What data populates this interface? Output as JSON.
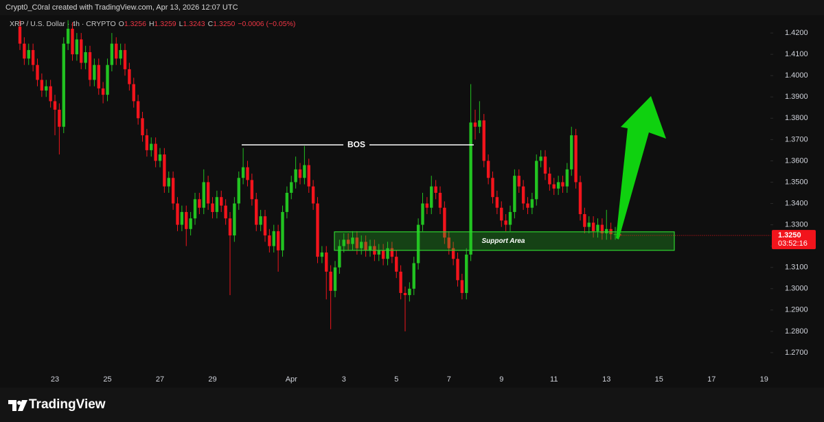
{
  "header": {
    "attribution": "Crypt0_C0ral created with TradingView.com, Apr 13, 2026 12:07 UTC"
  },
  "footer": {
    "brand": "TradingView"
  },
  "chart_data": {
    "type": "candlestick",
    "symbol": "XRP / U.S. Dollar · 4h · CRYPTO",
    "legend_labels": [
      "O",
      "H",
      "L",
      "C"
    ],
    "legend_values": [
      "1.3256",
      "1.3259",
      "1.3243",
      "1.3250"
    ],
    "change": "−0.0006 (−0.05%)",
    "up_color": "#22c321",
    "down_color": "#f2141c",
    "categories": [
      null,
      null,
      null,
      null,
      null,
      null,
      null,
      null,
      "23",
      null,
      null,
      null,
      null,
      null,
      null,
      null,
      null,
      null,
      null,
      null,
      "25",
      null,
      null,
      null,
      null,
      null,
      null,
      null,
      null,
      null,
      null,
      null,
      "27",
      null,
      null,
      null,
      null,
      null,
      null,
      null,
      null,
      null,
      null,
      null,
      "29",
      null,
      null,
      null,
      null,
      null,
      null,
      null,
      null,
      null,
      null,
      null,
      null,
      null,
      null,
      null,
      null,
      null,
      "Apr",
      null,
      null,
      null,
      null,
      null,
      null,
      null,
      null,
      null,
      null,
      null,
      "3",
      null,
      null,
      null,
      null,
      null,
      null,
      null,
      null,
      null,
      null,
      null,
      "5",
      null,
      null,
      null,
      null,
      null,
      null,
      null,
      null,
      null,
      null,
      null,
      "7",
      null,
      null,
      null,
      null,
      null,
      null,
      null,
      null,
      null,
      null,
      null,
      "9",
      null,
      null,
      null,
      null,
      null,
      null,
      null,
      null,
      null,
      null,
      null,
      "11",
      null,
      null,
      null,
      null,
      null,
      null,
      null,
      null,
      null,
      null,
      null,
      "13",
      null,
      null,
      null,
      null,
      null,
      null,
      null,
      null,
      null,
      null,
      null,
      "15",
      null,
      null,
      null,
      null,
      null,
      null,
      null,
      null,
      null,
      null,
      null,
      "17",
      null,
      null,
      null,
      null,
      null,
      null,
      null,
      null,
      null,
      null,
      null,
      "19",
      null
    ],
    "open": [
      1.423,
      1.415,
      1.408,
      1.412,
      1.405,
      1.398,
      1.393,
      1.395,
      1.388,
      1.384,
      1.376,
      1.415,
      1.422,
      1.41,
      1.417,
      1.406,
      1.411,
      1.398,
      1.405,
      1.394,
      1.391,
      1.405,
      1.415,
      1.408,
      1.412,
      1.403,
      1.396,
      1.388,
      1.38,
      1.372,
      1.365,
      1.368,
      1.36,
      1.363,
      1.348,
      1.352,
      1.34,
      1.33,
      1.336,
      1.328,
      1.333,
      1.342,
      1.338,
      1.35,
      1.34,
      1.336,
      1.343,
      1.339,
      1.333,
      1.325,
      1.34,
      1.352,
      1.357,
      1.351,
      1.342,
      1.33,
      1.334,
      1.325,
      1.32,
      1.327,
      1.318,
      1.336,
      1.345,
      1.35,
      1.356,
      1.352,
      1.358,
      1.348,
      1.34,
      1.315,
      1.317,
      1.308,
      1.299,
      1.31,
      1.32,
      1.323,
      1.321,
      1.324,
      1.319,
      1.322,
      1.318,
      1.32,
      1.316,
      1.318,
      1.314,
      1.319,
      1.315,
      1.308,
      1.298,
      1.297,
      1.3,
      1.312,
      1.33,
      1.34,
      1.338,
      1.348,
      1.345,
      1.338,
      1.324,
      1.319,
      1.314,
      1.304,
      1.298,
      1.316,
      1.378,
      1.376,
      1.379,
      1.36,
      1.352,
      1.343,
      1.338,
      1.332,
      1.33,
      1.336,
      1.353,
      1.348,
      1.34,
      1.338,
      1.342,
      1.36,
      1.362,
      1.354,
      1.349,
      1.347,
      1.35,
      1.348,
      1.356,
      1.372,
      1.35,
      1.335,
      1.329,
      1.331,
      1.327,
      1.33,
      1.326,
      1.328,
      1.3256,
      1.3256,
      null,
      null,
      null,
      null,
      null,
      null,
      null,
      null,
      null,
      null,
      null,
      null,
      null,
      null,
      null,
      null,
      null,
      null,
      null,
      null,
      null,
      null,
      null,
      null,
      null,
      null,
      null,
      null,
      null,
      null,
      null,
      null,
      null,
      null
    ],
    "high": [
      1.426,
      1.418,
      1.415,
      1.415,
      1.408,
      1.401,
      1.398,
      1.398,
      1.391,
      1.387,
      1.418,
      1.426,
      1.425,
      1.42,
      1.42,
      1.414,
      1.414,
      1.408,
      1.408,
      1.397,
      1.408,
      1.42,
      1.418,
      1.415,
      1.415,
      1.406,
      1.399,
      1.391,
      1.383,
      1.375,
      1.371,
      1.371,
      1.366,
      1.366,
      1.355,
      1.355,
      1.343,
      1.339,
      1.339,
      1.336,
      1.345,
      1.345,
      1.356,
      1.353,
      1.343,
      1.346,
      1.346,
      1.342,
      1.336,
      1.343,
      1.355,
      1.366,
      1.36,
      1.354,
      1.345,
      1.337,
      1.337,
      1.328,
      1.33,
      1.33,
      1.339,
      1.348,
      1.353,
      1.362,
      1.359,
      1.367,
      1.361,
      1.351,
      1.343,
      1.32,
      1.32,
      1.311,
      1.313,
      1.323,
      1.326,
      1.326,
      1.327,
      1.327,
      1.325,
      1.325,
      1.323,
      1.323,
      1.321,
      1.321,
      1.322,
      1.322,
      1.318,
      1.311,
      1.301,
      1.303,
      1.315,
      1.333,
      1.345,
      1.343,
      1.353,
      1.351,
      1.348,
      1.341,
      1.327,
      1.322,
      1.317,
      1.307,
      1.319,
      1.396,
      1.384,
      1.388,
      1.382,
      1.363,
      1.355,
      1.346,
      1.341,
      1.335,
      1.339,
      1.356,
      1.356,
      1.351,
      1.343,
      1.345,
      1.363,
      1.365,
      1.365,
      1.357,
      1.352,
      1.353,
      1.353,
      1.359,
      1.376,
      1.375,
      1.353,
      1.338,
      1.334,
      1.334,
      1.333,
      1.333,
      1.337,
      1.331,
      1.329,
      1.3259,
      null,
      null,
      null,
      null,
      null,
      null,
      null,
      null,
      null,
      null,
      null,
      null,
      null,
      null,
      null,
      null,
      null,
      null,
      null,
      null,
      null,
      null,
      null,
      null,
      null,
      null,
      null,
      null,
      null,
      null,
      null,
      null,
      null,
      null
    ],
    "low": [
      1.412,
      1.405,
      1.405,
      1.402,
      1.395,
      1.39,
      1.39,
      1.385,
      1.372,
      1.363,
      1.373,
      1.412,
      1.407,
      1.407,
      1.403,
      1.403,
      1.395,
      1.395,
      1.391,
      1.387,
      1.388,
      1.402,
      1.405,
      1.405,
      1.4,
      1.393,
      1.385,
      1.377,
      1.369,
      1.362,
      1.362,
      1.357,
      1.357,
      1.345,
      1.345,
      1.337,
      1.327,
      1.327,
      1.32,
      1.325,
      1.33,
      1.335,
      1.335,
      1.337,
      1.333,
      1.333,
      1.336,
      1.33,
      1.297,
      1.322,
      1.337,
      1.349,
      1.348,
      1.339,
      1.327,
      1.327,
      1.322,
      1.317,
      1.317,
      1.308,
      1.315,
      1.333,
      1.342,
      1.347,
      1.349,
      1.349,
      1.345,
      1.337,
      1.312,
      1.312,
      1.295,
      1.281,
      1.296,
      1.307,
      1.317,
      1.318,
      1.318,
      1.316,
      1.316,
      1.315,
      1.315,
      1.313,
      1.313,
      1.311,
      1.311,
      1.312,
      1.305,
      1.295,
      1.28,
      1.294,
      1.297,
      1.309,
      1.327,
      1.335,
      1.335,
      1.342,
      1.335,
      1.321,
      1.316,
      1.311,
      1.301,
      1.295,
      1.295,
      1.313,
      1.37,
      1.373,
      1.357,
      1.349,
      1.34,
      1.335,
      1.329,
      1.327,
      1.327,
      1.333,
      1.345,
      1.337,
      1.335,
      1.335,
      1.339,
      1.357,
      1.351,
      1.346,
      1.344,
      1.344,
      1.345,
      1.345,
      1.353,
      1.347,
      1.332,
      1.326,
      1.326,
      1.324,
      1.324,
      1.323,
      1.323,
      1.323,
      1.323,
      1.3243,
      null,
      null,
      null,
      null,
      null,
      null,
      null,
      null,
      null,
      null,
      null,
      null,
      null,
      null,
      null,
      null,
      null,
      null,
      null,
      null,
      null,
      null,
      null,
      null,
      null,
      null,
      null,
      null,
      null,
      null,
      null,
      null,
      null,
      null
    ],
    "close": [
      1.415,
      1.408,
      1.412,
      1.405,
      1.398,
      1.393,
      1.395,
      1.388,
      1.384,
      1.376,
      1.415,
      1.422,
      1.41,
      1.417,
      1.406,
      1.411,
      1.398,
      1.405,
      1.394,
      1.391,
      1.405,
      1.415,
      1.408,
      1.412,
      1.403,
      1.396,
      1.388,
      1.38,
      1.372,
      1.365,
      1.368,
      1.36,
      1.363,
      1.348,
      1.352,
      1.34,
      1.33,
      1.336,
      1.328,
      1.333,
      1.342,
      1.338,
      1.35,
      1.34,
      1.336,
      1.343,
      1.339,
      1.333,
      1.325,
      1.34,
      1.352,
      1.357,
      1.351,
      1.342,
      1.33,
      1.334,
      1.325,
      1.32,
      1.327,
      1.318,
      1.336,
      1.345,
      1.35,
      1.356,
      1.352,
      1.358,
      1.348,
      1.34,
      1.315,
      1.317,
      1.308,
      1.299,
      1.31,
      1.32,
      1.323,
      1.321,
      1.324,
      1.319,
      1.322,
      1.318,
      1.32,
      1.316,
      1.318,
      1.314,
      1.319,
      1.315,
      1.308,
      1.298,
      1.297,
      1.3,
      1.312,
      1.33,
      1.34,
      1.338,
      1.348,
      1.345,
      1.338,
      1.324,
      1.319,
      1.314,
      1.304,
      1.298,
      1.316,
      1.378,
      1.376,
      1.379,
      1.36,
      1.352,
      1.343,
      1.338,
      1.332,
      1.33,
      1.336,
      1.353,
      1.348,
      1.34,
      1.338,
      1.342,
      1.36,
      1.362,
      1.354,
      1.349,
      1.347,
      1.35,
      1.348,
      1.356,
      1.372,
      1.35,
      1.335,
      1.329,
      1.331,
      1.327,
      1.33,
      1.326,
      1.328,
      1.3256,
      1.3256,
      1.325,
      null,
      null,
      null,
      null,
      null,
      null,
      null,
      null,
      null,
      null,
      null,
      null,
      null,
      null,
      null,
      null,
      null,
      null,
      null,
      null,
      null,
      null,
      null,
      null,
      null,
      null,
      null,
      null,
      null,
      null,
      null,
      null,
      null,
      null
    ],
    "ylim": [
      1.2616,
      1.4284
    ],
    "yticks": [
      {
        "value": 1.27,
        "label": "1.2700"
      },
      {
        "value": 1.28,
        "label": "1.2800"
      },
      {
        "value": 1.29,
        "label": "1.2900"
      },
      {
        "value": 1.3,
        "label": "1.3000"
      },
      {
        "value": 1.31,
        "label": "1.3100"
      },
      {
        "value": 1.32,
        "label": "1.3200"
      },
      {
        "value": 1.33,
        "label": "1.3300"
      },
      {
        "value": 1.34,
        "label": "1.3400"
      },
      {
        "value": 1.35,
        "label": "1.3500"
      },
      {
        "value": 1.36,
        "label": "1.3600"
      },
      {
        "value": 1.37,
        "label": "1.3700"
      },
      {
        "value": 1.38,
        "label": "1.3800"
      },
      {
        "value": 1.39,
        "label": "1.3900"
      },
      {
        "value": 1.4,
        "label": "1.4000"
      },
      {
        "value": 1.41,
        "label": "1.4100"
      },
      {
        "value": 1.42,
        "label": "1.4200"
      }
    ],
    "last_price": {
      "value": 1.325,
      "label": "1.3250"
    },
    "countdown": "03:52:16",
    "bos": {
      "label": "BOS",
      "price": 1.3675
    },
    "support_zone": {
      "label": "Support Area",
      "top": 1.3267,
      "bottom": 1.318
    }
  }
}
